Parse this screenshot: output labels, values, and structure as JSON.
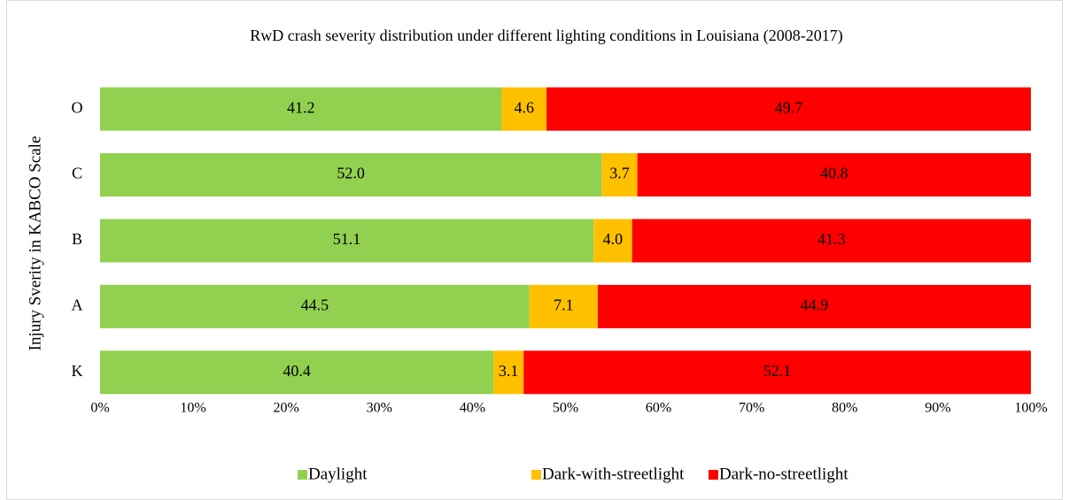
{
  "chart_data": {
    "type": "percent_stacked_barh",
    "title": "RwD crash severity distribution under different lighting conditions in Louisiana (2008-2017)",
    "y_label": "Injury Sverity in KABCO Scale",
    "categories": [
      "O",
      "C",
      "B",
      "A",
      "K"
    ],
    "series": [
      {
        "name": "Daylight",
        "color": "#92d050",
        "values": [
          41.2,
          52.0,
          51.1,
          44.5,
          40.4
        ],
        "value_labels": [
          "41.2",
          "52.0",
          "51.1",
          "44.5",
          "40.4"
        ]
      },
      {
        "name": "Dark-with-streetlight",
        "color": "#ffc000",
        "values": [
          4.6,
          3.7,
          4.0,
          7.1,
          3.1
        ],
        "value_labels": [
          "4.6",
          "3.7",
          "4.0",
          "7.1",
          "3.1"
        ]
      },
      {
        "name": "Dark-no-streetlight",
        "color": "#ff0000",
        "values": [
          49.7,
          40.8,
          41.3,
          44.9,
          52.1
        ],
        "value_labels": [
          "49.7",
          "40.8",
          "41.3",
          "44.9",
          "52.1"
        ]
      }
    ],
    "xlim": [
      0,
      100
    ],
    "xticks": [
      {
        "value": 0,
        "label": "0%"
      },
      {
        "value": 10,
        "label": "10%"
      },
      {
        "value": 20,
        "label": "20%"
      },
      {
        "value": 30,
        "label": "30%"
      },
      {
        "value": 40,
        "label": "40%"
      },
      {
        "value": 50,
        "label": "50%"
      },
      {
        "value": 60,
        "label": "60%"
      },
      {
        "value": 70,
        "label": "70%"
      },
      {
        "value": 80,
        "label": "80%"
      },
      {
        "value": 90,
        "label": "90%"
      },
      {
        "value": 100,
        "label": "100%"
      }
    ],
    "legend": "bottom"
  }
}
